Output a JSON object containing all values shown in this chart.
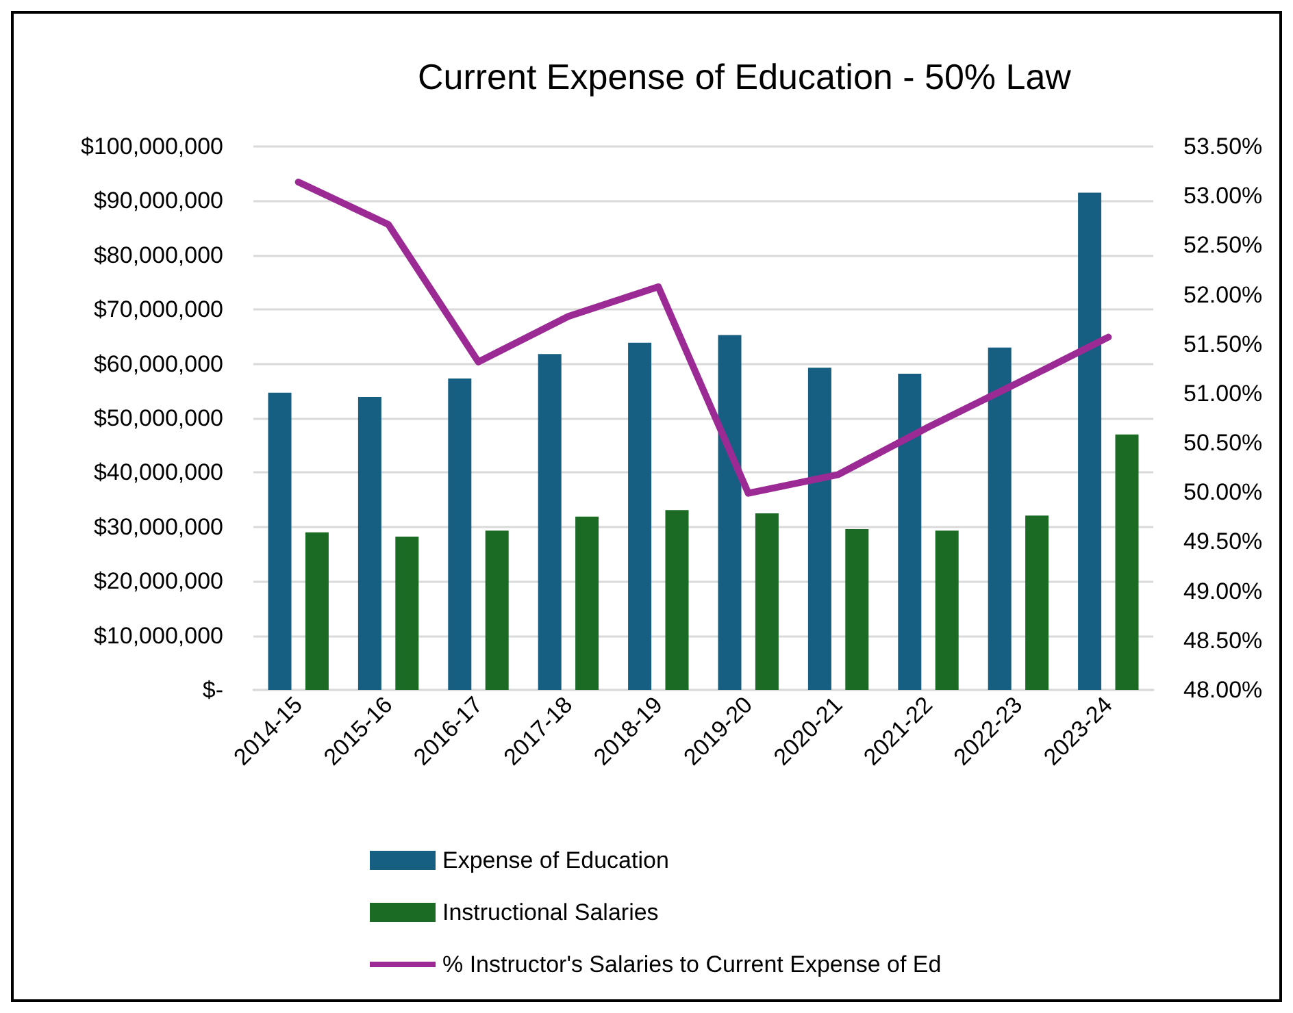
{
  "chart_data": {
    "type": "bar",
    "title": "Current Expense of Education - 50% Law",
    "categories": [
      "2014-15",
      "2015-16",
      "2016-17",
      "2017-18",
      "2018-19",
      "2019-20",
      "2020-21",
      "2021-22",
      "2022-23",
      "2023-24"
    ],
    "series": [
      {
        "name": "Expense of Education",
        "color": "#175f82",
        "values": [
          54700000,
          53900000,
          57300000,
          61800000,
          63900000,
          65300000,
          59300000,
          58200000,
          63000000,
          91500000
        ]
      },
      {
        "name": "Instructional Salaries",
        "color": "#1c6b24",
        "values": [
          29000000,
          28200000,
          29300000,
          31900000,
          33100000,
          32500000,
          29600000,
          29300000,
          32100000,
          47000000
        ]
      },
      {
        "name": "% Instructor's Salaries to Current Expense of Ed",
        "type": "line",
        "axis": "y2",
        "color": "#9c2a94",
        "values": [
          53.14,
          52.71,
          51.32,
          51.78,
          52.08,
          49.99,
          50.18,
          50.66,
          51.11,
          51.57
        ]
      }
    ],
    "ylim": [
      0,
      100000000
    ],
    "yticks": [
      {
        "value": 0,
        "label": "$-"
      },
      {
        "value": 10000000,
        "label": "$10,000,000"
      },
      {
        "value": 20000000,
        "label": "$20,000,000"
      },
      {
        "value": 30000000,
        "label": "$30,000,000"
      },
      {
        "value": 40000000,
        "label": "$40,000,000"
      },
      {
        "value": 50000000,
        "label": "$50,000,000"
      },
      {
        "value": 60000000,
        "label": "$60,000,000"
      },
      {
        "value": 70000000,
        "label": "$70,000,000"
      },
      {
        "value": 80000000,
        "label": "$80,000,000"
      },
      {
        "value": 90000000,
        "label": "$90,000,000"
      },
      {
        "value": 100000000,
        "label": "$100,000,000"
      }
    ],
    "y2lim": [
      48,
      53.5
    ],
    "y2ticks": [
      {
        "value": 48,
        "label": "48.00%"
      },
      {
        "value": 48.5,
        "label": "48.50%"
      },
      {
        "value": 49,
        "label": "49.00%"
      },
      {
        "value": 49.5,
        "label": "49.50%"
      },
      {
        "value": 50,
        "label": "50.00%"
      },
      {
        "value": 50.5,
        "label": "50.50%"
      },
      {
        "value": 51,
        "label": "51.00%"
      },
      {
        "value": 51.5,
        "label": "51.50%"
      },
      {
        "value": 52,
        "label": "52.00%"
      },
      {
        "value": 52.5,
        "label": "52.50%"
      },
      {
        "value": 53,
        "label": "53.00%"
      },
      {
        "value": 53.5,
        "label": "53.50%"
      }
    ],
    "grid": "y",
    "legend": "bottom",
    "marker": "none",
    "line_style": "solid"
  }
}
